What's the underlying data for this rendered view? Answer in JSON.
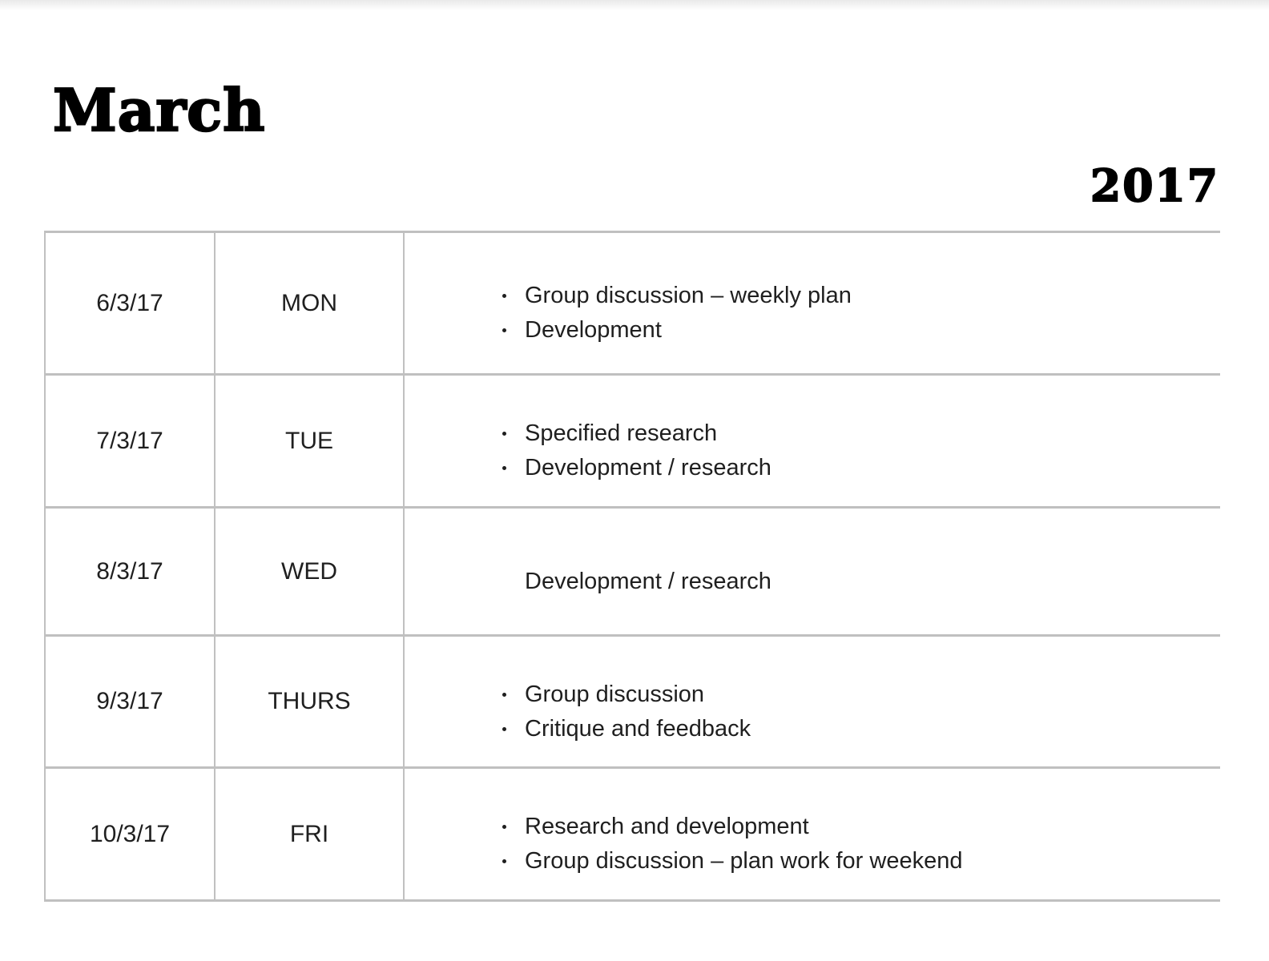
{
  "page": {
    "title": "March",
    "year": "2017"
  },
  "table": {
    "rows": [
      {
        "date": "6/3/17",
        "day": "MON",
        "items": [
          {
            "bullet": true,
            "text": "Group discussion – weekly plan"
          },
          {
            "bullet": true,
            "text": "Development"
          }
        ]
      },
      {
        "date": "7/3/17",
        "day": "TUE",
        "items": [
          {
            "bullet": true,
            "text": "Specified research"
          },
          {
            "bullet": true,
            "text": "Development / research"
          }
        ]
      },
      {
        "date": "8/3/17",
        "day": "WED",
        "items": [
          {
            "bullet": false,
            "text": "Development / research"
          }
        ]
      },
      {
        "date": "9/3/17",
        "day": "THURS",
        "items": [
          {
            "bullet": true,
            "text": "Group discussion"
          },
          {
            "bullet": true,
            "text": "Critique and feedback"
          }
        ]
      },
      {
        "date": "10/3/17",
        "day": "FRI",
        "items": [
          {
            "bullet": true,
            "text": "Research and development"
          },
          {
            "bullet": true,
            "text": "Group discussion – plan work for weekend"
          }
        ]
      }
    ]
  },
  "colors": {
    "border": "#c0c0c0",
    "body_text": "#1f1f1f",
    "title_text": "#000000"
  }
}
